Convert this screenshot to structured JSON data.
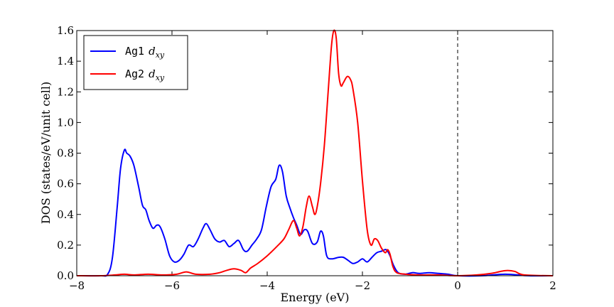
{
  "chart_data": {
    "type": "line",
    "xlabel": "Energy (eV)",
    "ylabel": "DOS (states/eV/unit cell)",
    "xlim": [
      -8,
      2
    ],
    "ylim": [
      0,
      1.6
    ],
    "x_ticks": [
      "−8",
      "−6",
      "−4",
      "−2",
      "0",
      "2"
    ],
    "x_tick_values": [
      -8,
      -6,
      -4,
      -2,
      0,
      2
    ],
    "y_ticks": [
      "0.0",
      "0.2",
      "0.4",
      "0.6",
      "0.8",
      "1.0",
      "1.2",
      "1.4",
      "1.6"
    ],
    "y_tick_values": [
      0,
      0.2,
      0.4,
      0.6,
      0.8,
      1.0,
      1.2,
      1.4,
      1.6
    ],
    "fermi_level": 0,
    "legend_position": "upper-left",
    "series": [
      {
        "name": "Ag1",
        "subscript_label": "d",
        "subscript": "xy",
        "color": "#0000ff",
        "points": [
          [
            -8.0,
            0.0
          ],
          [
            -7.5,
            0.0
          ],
          [
            -7.35,
            0.01
          ],
          [
            -7.25,
            0.12
          ],
          [
            -7.15,
            0.45
          ],
          [
            -7.08,
            0.7
          ],
          [
            -7.0,
            0.82
          ],
          [
            -6.95,
            0.8
          ],
          [
            -6.88,
            0.78
          ],
          [
            -6.8,
            0.72
          ],
          [
            -6.7,
            0.58
          ],
          [
            -6.62,
            0.46
          ],
          [
            -6.55,
            0.43
          ],
          [
            -6.48,
            0.36
          ],
          [
            -6.4,
            0.31
          ],
          [
            -6.32,
            0.33
          ],
          [
            -6.25,
            0.32
          ],
          [
            -6.15,
            0.24
          ],
          [
            -6.05,
            0.13
          ],
          [
            -5.95,
            0.09
          ],
          [
            -5.85,
            0.1
          ],
          [
            -5.75,
            0.14
          ],
          [
            -5.65,
            0.2
          ],
          [
            -5.55,
            0.19
          ],
          [
            -5.45,
            0.24
          ],
          [
            -5.35,
            0.31
          ],
          [
            -5.28,
            0.34
          ],
          [
            -5.2,
            0.3
          ],
          [
            -5.1,
            0.24
          ],
          [
            -5.0,
            0.22
          ],
          [
            -4.9,
            0.23
          ],
          [
            -4.8,
            0.19
          ],
          [
            -4.7,
            0.21
          ],
          [
            -4.6,
            0.23
          ],
          [
            -4.5,
            0.17
          ],
          [
            -4.42,
            0.16
          ],
          [
            -4.32,
            0.2
          ],
          [
            -4.22,
            0.24
          ],
          [
            -4.12,
            0.3
          ],
          [
            -4.02,
            0.45
          ],
          [
            -3.92,
            0.58
          ],
          [
            -3.82,
            0.63
          ],
          [
            -3.75,
            0.72
          ],
          [
            -3.68,
            0.68
          ],
          [
            -3.6,
            0.52
          ],
          [
            -3.52,
            0.44
          ],
          [
            -3.45,
            0.38
          ],
          [
            -3.38,
            0.33
          ],
          [
            -3.3,
            0.27
          ],
          [
            -3.22,
            0.3
          ],
          [
            -3.15,
            0.29
          ],
          [
            -3.05,
            0.21
          ],
          [
            -2.95,
            0.22
          ],
          [
            -2.88,
            0.29
          ],
          [
            -2.82,
            0.26
          ],
          [
            -2.75,
            0.13
          ],
          [
            -2.65,
            0.11
          ],
          [
            -2.5,
            0.12
          ],
          [
            -2.4,
            0.12
          ],
          [
            -2.3,
            0.1
          ],
          [
            -2.2,
            0.08
          ],
          [
            -2.1,
            0.09
          ],
          [
            -2.0,
            0.11
          ],
          [
            -1.9,
            0.09
          ],
          [
            -1.8,
            0.12
          ],
          [
            -1.7,
            0.15
          ],
          [
            -1.6,
            0.16
          ],
          [
            -1.5,
            0.17
          ],
          [
            -1.42,
            0.13
          ],
          [
            -1.35,
            0.07
          ],
          [
            -1.25,
            0.02
          ],
          [
            -1.1,
            0.01
          ],
          [
            -0.95,
            0.02
          ],
          [
            -0.8,
            0.015
          ],
          [
            -0.6,
            0.02
          ],
          [
            -0.4,
            0.015
          ],
          [
            -0.2,
            0.01
          ],
          [
            0.0,
            0.0
          ],
          [
            0.5,
            0.0
          ],
          [
            1.0,
            0.01
          ],
          [
            1.5,
            0.0
          ],
          [
            2.0,
            0.0
          ]
        ]
      },
      {
        "name": "Ag2",
        "subscript_label": "d",
        "subscript": "xy",
        "color": "#ff0000",
        "points": [
          [
            -8.0,
            0.0
          ],
          [
            -7.5,
            0.0
          ],
          [
            -7.2,
            0.005
          ],
          [
            -7.0,
            0.01
          ],
          [
            -6.8,
            0.005
          ],
          [
            -6.5,
            0.01
          ],
          [
            -6.2,
            0.005
          ],
          [
            -5.9,
            0.01
          ],
          [
            -5.7,
            0.025
          ],
          [
            -5.5,
            0.01
          ],
          [
            -5.2,
            0.01
          ],
          [
            -5.0,
            0.02
          ],
          [
            -4.85,
            0.035
          ],
          [
            -4.7,
            0.045
          ],
          [
            -4.55,
            0.035
          ],
          [
            -4.45,
            0.02
          ],
          [
            -4.35,
            0.05
          ],
          [
            -4.2,
            0.08
          ],
          [
            -4.0,
            0.13
          ],
          [
            -3.8,
            0.19
          ],
          [
            -3.65,
            0.24
          ],
          [
            -3.55,
            0.3
          ],
          [
            -3.45,
            0.36
          ],
          [
            -3.38,
            0.31
          ],
          [
            -3.32,
            0.26
          ],
          [
            -3.25,
            0.32
          ],
          [
            -3.18,
            0.45
          ],
          [
            -3.12,
            0.52
          ],
          [
            -3.05,
            0.45
          ],
          [
            -3.0,
            0.4
          ],
          [
            -2.95,
            0.45
          ],
          [
            -2.88,
            0.6
          ],
          [
            -2.8,
            0.85
          ],
          [
            -2.72,
            1.2
          ],
          [
            -2.65,
            1.5
          ],
          [
            -2.6,
            1.6
          ],
          [
            -2.55,
            1.55
          ],
          [
            -2.5,
            1.32
          ],
          [
            -2.45,
            1.24
          ],
          [
            -2.4,
            1.26
          ],
          [
            -2.32,
            1.3
          ],
          [
            -2.25,
            1.28
          ],
          [
            -2.2,
            1.22
          ],
          [
            -2.1,
            1.0
          ],
          [
            -2.0,
            0.62
          ],
          [
            -1.9,
            0.3
          ],
          [
            -1.82,
            0.2
          ],
          [
            -1.75,
            0.24
          ],
          [
            -1.68,
            0.23
          ],
          [
            -1.6,
            0.18
          ],
          [
            -1.52,
            0.15
          ],
          [
            -1.47,
            0.17
          ],
          [
            -1.42,
            0.14
          ],
          [
            -1.36,
            0.06
          ],
          [
            -1.28,
            0.02
          ],
          [
            -1.1,
            0.01
          ],
          [
            -0.8,
            0.005
          ],
          [
            -0.4,
            0.005
          ],
          [
            0.0,
            0.0
          ],
          [
            0.4,
            0.005
          ],
          [
            0.7,
            0.015
          ],
          [
            0.9,
            0.028
          ],
          [
            1.05,
            0.034
          ],
          [
            1.2,
            0.028
          ],
          [
            1.4,
            0.005
          ],
          [
            2.0,
            0.0
          ]
        ]
      }
    ]
  }
}
